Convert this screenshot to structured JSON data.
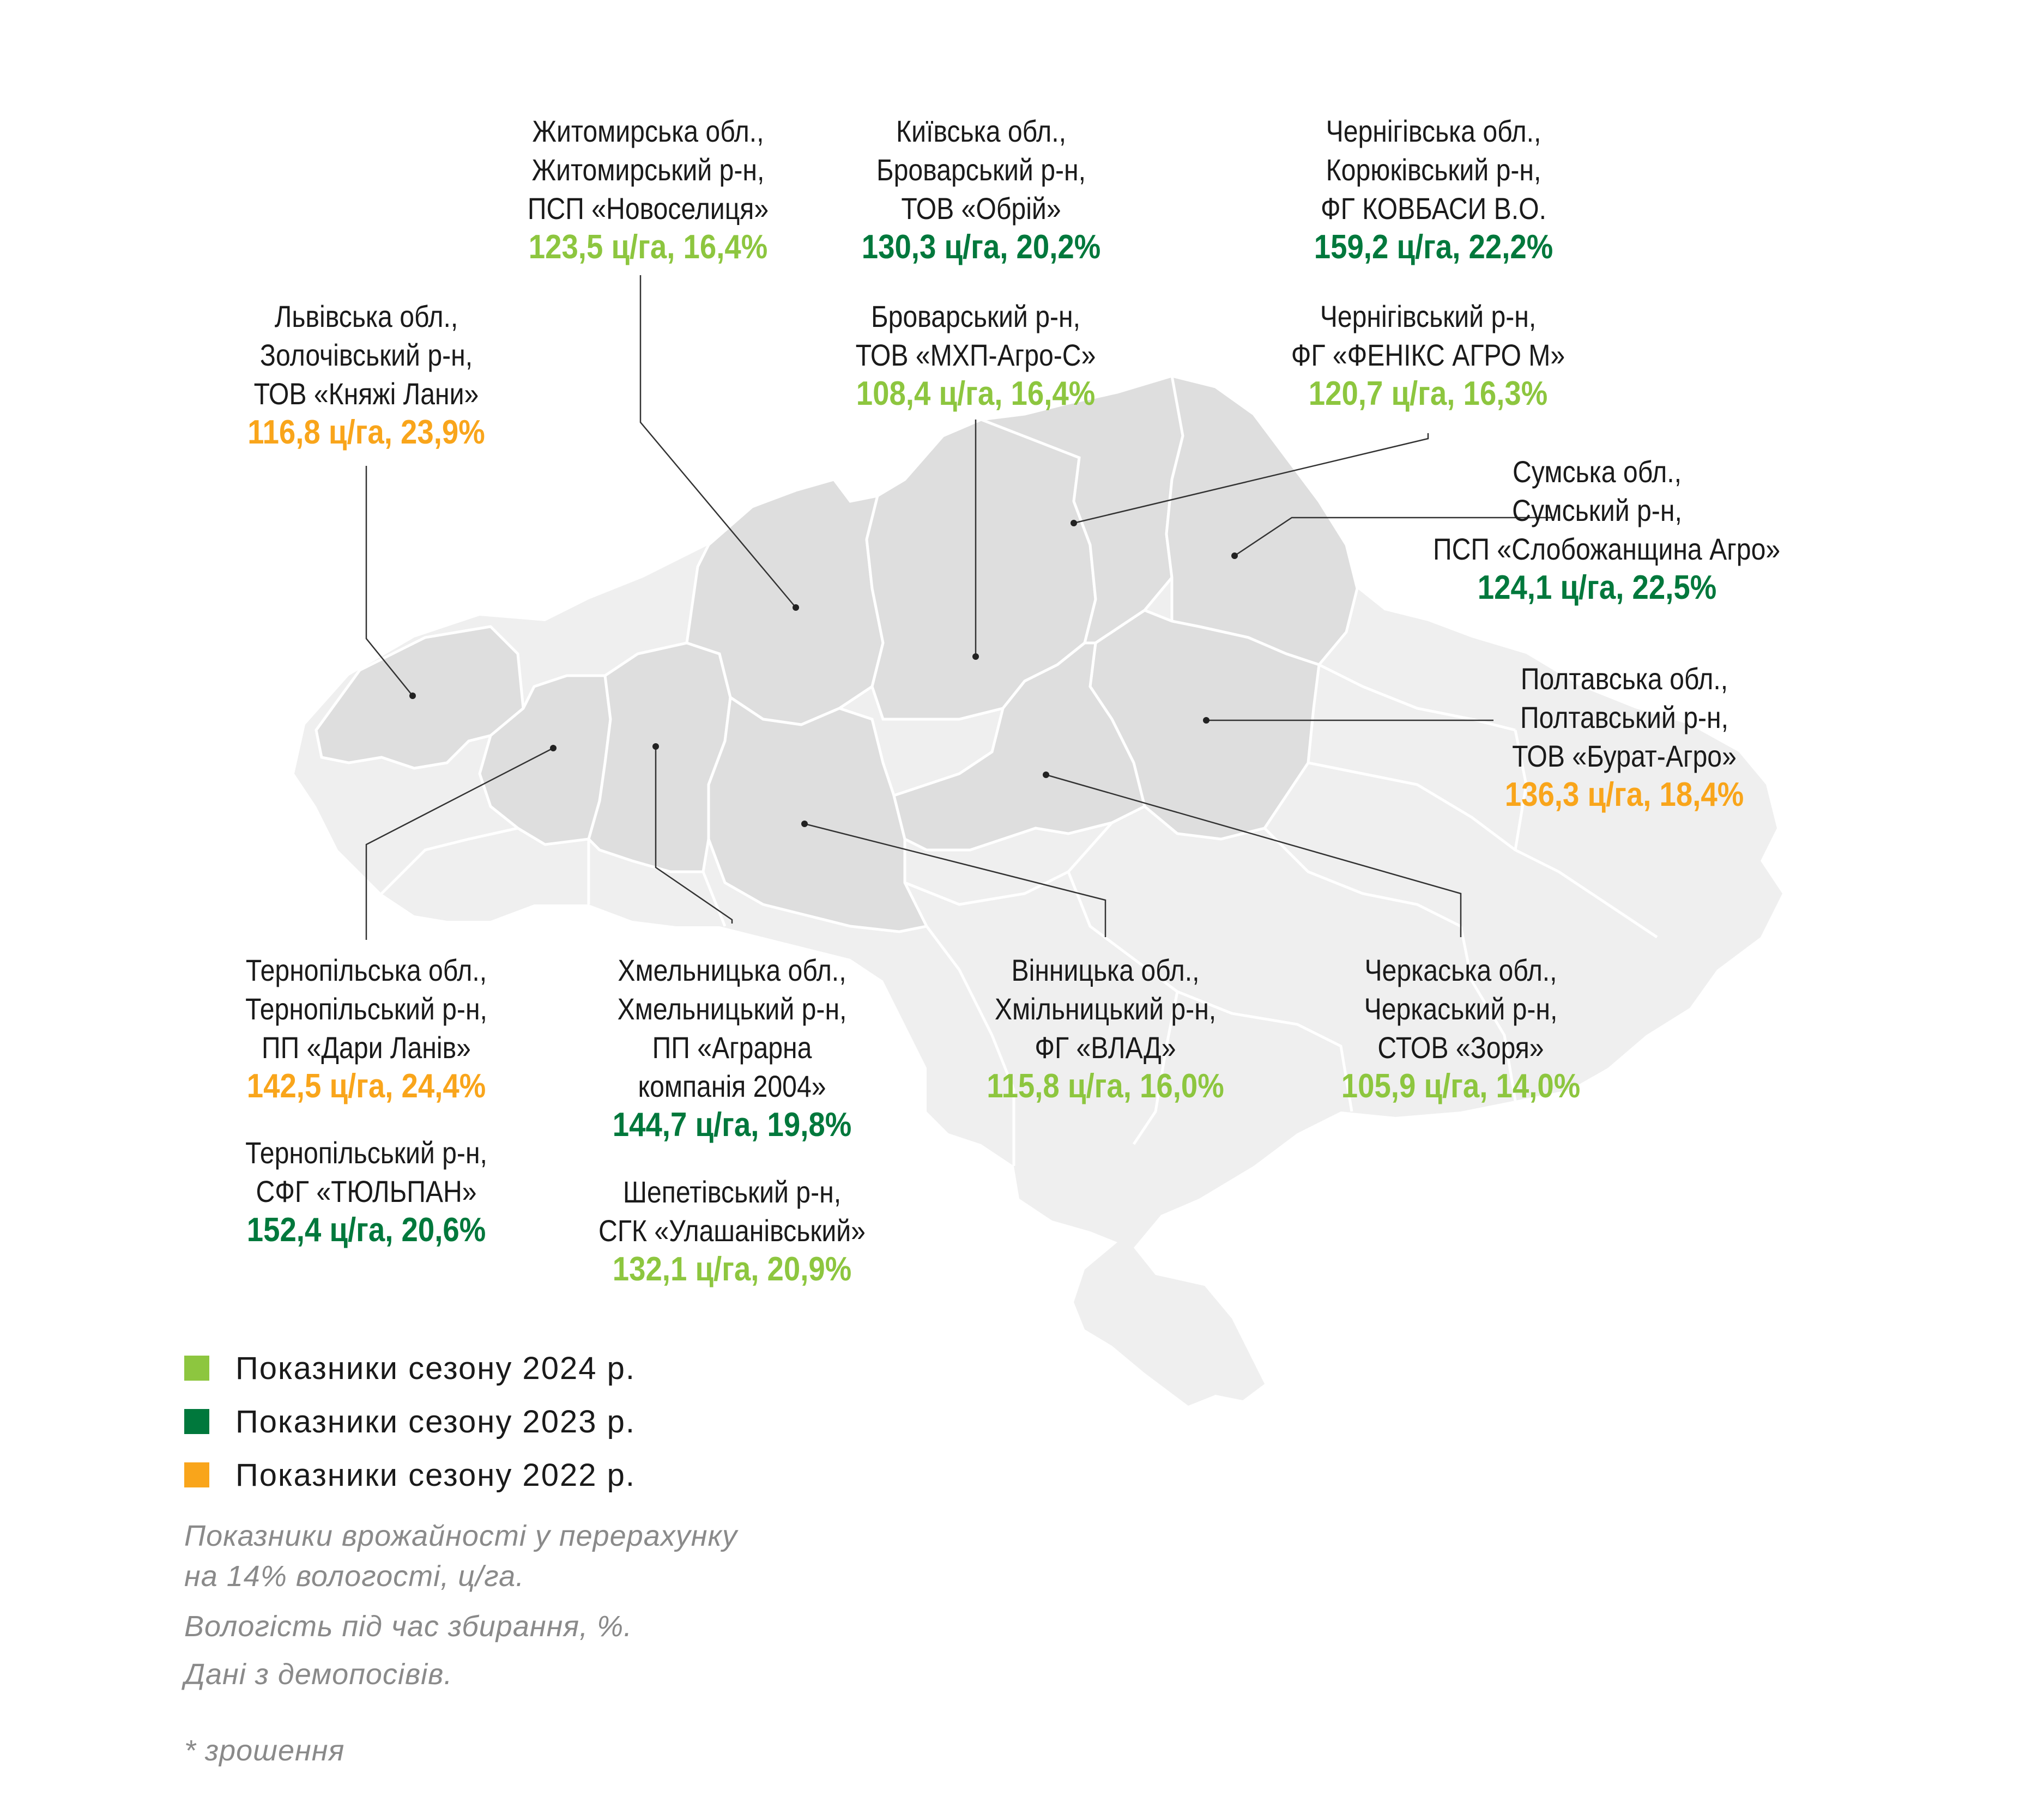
{
  "colors": {
    "season_2024": "#8dc63f",
    "season_2023": "#00783c",
    "season_2022": "#f9a51b",
    "map_base": "#efefef",
    "map_highlight": "#dedede",
    "borders": "#ffffff",
    "leader": "#333333"
  },
  "callouts": [
    {
      "lines": [
        "Житомирська обл.,",
        "Житомирський р-н,",
        "ПСП «Новоселиця»"
      ],
      "value": "123,5 ц/га, 16,4%",
      "season": "2024"
    },
    {
      "lines": [
        "Київська обл.,",
        "Броварський р-н,",
        "ТОВ «Обрій»"
      ],
      "value": "130,3 ц/га, 20,2%",
      "season": "2023"
    },
    {
      "lines": [
        "Чернігівська обл.,",
        "Корюківський р-н,",
        "ФГ КОВБАСИ В.О."
      ],
      "value": "159,2 ц/га, 22,2%",
      "season": "2023"
    },
    {
      "lines": [
        "Львівська обл.,",
        "Золочівський р-н,",
        "ТОВ «Княжі Лани»"
      ],
      "value": "116,8 ц/га, 23,9%",
      "season": "2022"
    },
    {
      "lines": [
        "Броварський р-н,",
        "ТОВ «МХП-Агро-С»"
      ],
      "value": "108,4 ц/га, 16,4%",
      "season": "2024"
    },
    {
      "lines": [
        "Чернігівський р-н,",
        "ФГ «ФЕНІКС АГРО М»"
      ],
      "value": "120,7 ц/га, 16,3%",
      "season": "2024"
    },
    {
      "lines": [
        "Сумська обл.,",
        "Сумський р-н,",
        "ПСП «Слобожанщина Агро»"
      ],
      "value": "124,1 ц/га, 22,5%",
      "season": "2023"
    },
    {
      "lines": [
        "Полтавська обл.,",
        "Полтавський р-н,",
        "ТОВ «Бурат-Агро»"
      ],
      "value": "136,3 ц/га, 18,4%",
      "season": "2022"
    },
    {
      "lines": [
        "Тернопільська обл.,",
        "Тернопільський р-н,",
        "ПП «Дари Ланів»"
      ],
      "value": "142,5 ц/га, 24,4%",
      "season": "2022"
    },
    {
      "lines": [
        "Тернопільський р-н,",
        "СФГ «ТЮЛЬПАН»"
      ],
      "value": "152,4 ц/га, 20,6%",
      "season": "2023"
    },
    {
      "lines": [
        "Хмельницька обл.,",
        "Хмельницький р-н,",
        "ПП «Аграрна",
        "компанія 2004»"
      ],
      "value": "144,7 ц/га, 19,8%",
      "season": "2023"
    },
    {
      "lines": [
        "Шепетівський р-н,",
        "СГК «Улашанівський»"
      ],
      "value": "132,1 ц/га, 20,9%",
      "season": "2024"
    },
    {
      "lines": [
        "Вінницька обл.,",
        "Хмільницький р-н,",
        "ФГ «ВЛАД»"
      ],
      "value": "115,8 ц/га, 16,0%",
      "season": "2024"
    },
    {
      "lines": [
        "Черкаська обл.,",
        "Черкаський р-н,",
        "СТОВ «Зоря»"
      ],
      "value": "105,9 ц/га, 14,0%",
      "season": "2024"
    }
  ],
  "legend": [
    {
      "label": "Показники сезону 2024 р.",
      "color": "#8dc63f"
    },
    {
      "label": "Показники сезону 2023 р.",
      "color": "#00783c"
    },
    {
      "label": "Показники сезону 2022 р.",
      "color": "#f9a51b"
    }
  ],
  "notes": {
    "line1": "Показники врожайності у перерахунку",
    "line2": "на 14% вологості, ц/га.",
    "line3": "Вологість під час збирання, %.",
    "line4": "Дані з демопосівів.",
    "footnote": "* зрошення"
  }
}
